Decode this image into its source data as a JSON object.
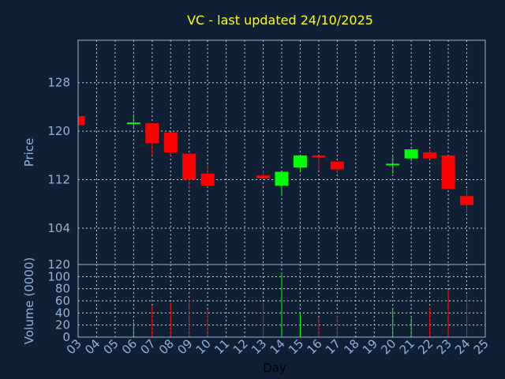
{
  "chart_data": {
    "type": "candlestick",
    "title": "VC - last updated 24/10/2025",
    "xlabel": "Day",
    "price_ylabel": "Price",
    "volume_ylabel": "Volume (0000)",
    "price_ylim": [
      98,
      135
    ],
    "price_yticks": [
      104,
      112,
      120,
      128
    ],
    "volume_ylim": [
      0,
      120
    ],
    "volume_yticks": [
      0,
      20,
      40,
      60,
      80,
      100,
      120
    ],
    "x_ticks": [
      "03",
      "04",
      "05",
      "06",
      "07",
      "08",
      "09",
      "10",
      "11",
      "12",
      "13",
      "14",
      "15",
      "16",
      "17",
      "18",
      "19",
      "20",
      "21",
      "22",
      "23",
      "24",
      "25"
    ],
    "up_color": "#00ff00",
    "down_color": "#ff0000",
    "background_color": "#102034",
    "grid": true,
    "candles": [
      {
        "day": "03",
        "open": 122.5,
        "high": 122.5,
        "low": 121.0,
        "close": 121.0,
        "volume": 0
      },
      {
        "day": "06",
        "open": 121.3,
        "high": 122.8,
        "low": 120.3,
        "close": 121.3,
        "volume": 25
      },
      {
        "day": "07",
        "open": 121.3,
        "high": 121.3,
        "low": 116.0,
        "close": 118.0,
        "volume": 52
      },
      {
        "day": "08",
        "open": 119.8,
        "high": 119.8,
        "low": 116.0,
        "close": 116.5,
        "volume": 57
      },
      {
        "day": "09",
        "open": 116.3,
        "high": 116.3,
        "low": 110.5,
        "close": 112.0,
        "volume": 62
      },
      {
        "day": "10",
        "open": 113.0,
        "high": 114.5,
        "low": 110.8,
        "close": 111.0,
        "volume": 45
      },
      {
        "day": "13",
        "open": 112.7,
        "high": 113.5,
        "low": 112.0,
        "close": 112.2,
        "volume": 57
      },
      {
        "day": "14",
        "open": 111.0,
        "high": 113.3,
        "low": 109.3,
        "close": 113.3,
        "volume": 106
      },
      {
        "day": "15",
        "open": 114.0,
        "high": 116.0,
        "low": 113.3,
        "close": 116.0,
        "volume": 40
      },
      {
        "day": "16",
        "open": 116.0,
        "high": 116.0,
        "low": 113.5,
        "close": 115.7,
        "volume": 32
      },
      {
        "day": "17",
        "open": 115.0,
        "high": 115.0,
        "low": 113.0,
        "close": 113.7,
        "volume": 35
      },
      {
        "day": "20",
        "open": 114.5,
        "high": 115.8,
        "low": 113.0,
        "close": 114.5,
        "volume": 48
      },
      {
        "day": "21",
        "open": 115.5,
        "high": 117.0,
        "low": 115.0,
        "close": 117.0,
        "volume": 32
      },
      {
        "day": "22",
        "open": 116.5,
        "high": 117.0,
        "low": 115.3,
        "close": 115.5,
        "volume": 48
      },
      {
        "day": "23",
        "open": 116.0,
        "high": 116.0,
        "low": 110.5,
        "close": 110.5,
        "volume": 78
      },
      {
        "day": "24",
        "open": 109.3,
        "high": 110.5,
        "low": 106.5,
        "close": 107.8,
        "volume": 70
      }
    ]
  }
}
